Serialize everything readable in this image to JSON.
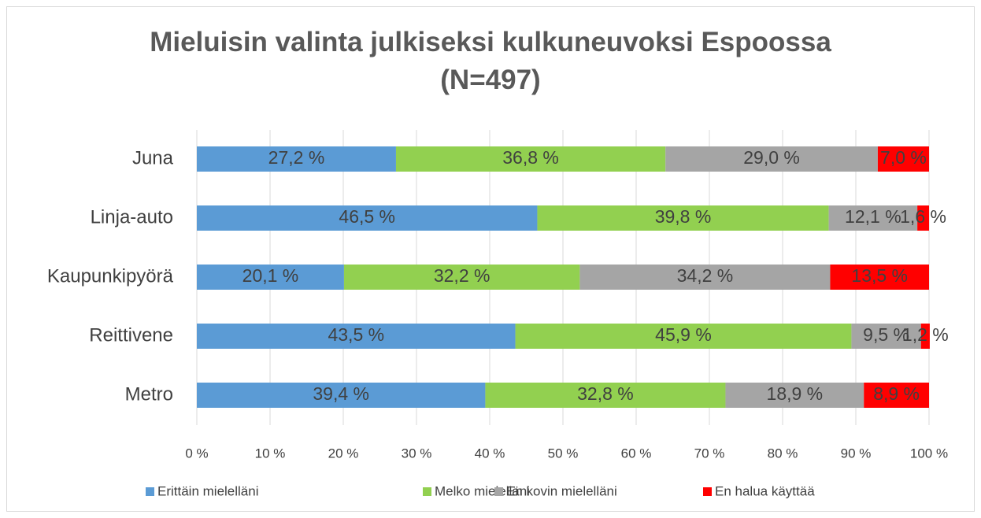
{
  "chart_data": {
    "type": "stacked_barh",
    "title": "Mieluisin valinta julkiseksi kulkuneuvoksi Espoossa (N=497)",
    "categories": [
      "Juna",
      "Linja-auto",
      "Kaupunkipyörä",
      "Reittivene",
      "Metro"
    ],
    "series": [
      {
        "name": "Erittäin mielelläni",
        "color": "#5b9bd5",
        "values": [
          27.2,
          46.5,
          20.1,
          43.5,
          39.4
        ],
        "value_labels": [
          "27,2 %",
          "46,5 %",
          "20,1 %",
          "43,5 %",
          "39,4 %"
        ]
      },
      {
        "name": "Melko mielelläni",
        "color": "#92d050",
        "values": [
          36.8,
          39.8,
          32.2,
          45.9,
          32.8
        ],
        "value_labels": [
          "36,8 %",
          "39,8 %",
          "32,2 %",
          "45,9 %",
          "32,8 %"
        ]
      },
      {
        "name": "En kovin mielelläni",
        "color": "#a5a5a5",
        "values": [
          29.0,
          12.1,
          34.2,
          9.5,
          18.9
        ],
        "value_labels": [
          "29,0 %",
          "12,1 %",
          "34,2 %",
          "9,5 %",
          "18,9 %"
        ]
      },
      {
        "name": "En halua käyttää",
        "color": "#ff0000",
        "values": [
          7.0,
          1.6,
          13.5,
          1.2,
          8.9
        ],
        "value_labels": [
          "7,0 %",
          "1,6 %",
          "13,5 %",
          "1,2 %",
          "8,9 %"
        ]
      }
    ],
    "xlim": [
      0,
      100
    ],
    "xticks": [
      {
        "value": 0,
        "label": "0 %"
      },
      {
        "value": 10,
        "label": "10 %"
      },
      {
        "value": 20,
        "label": "20 %"
      },
      {
        "value": 30,
        "label": "30 %"
      },
      {
        "value": 40,
        "label": "40 %"
      },
      {
        "value": 50,
        "label": "50 %"
      },
      {
        "value": 60,
        "label": "60 %"
      },
      {
        "value": 70,
        "label": "70 %"
      },
      {
        "value": 80,
        "label": "80 %"
      },
      {
        "value": 90,
        "label": "90 %"
      },
      {
        "value": 100,
        "label": "100 %"
      }
    ],
    "grid": true,
    "legend": "bottom"
  }
}
